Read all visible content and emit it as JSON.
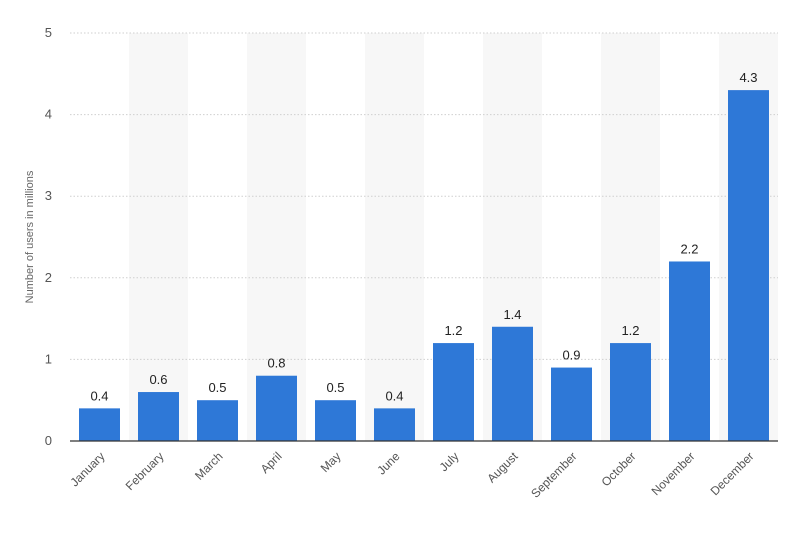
{
  "chart_data": {
    "type": "bar",
    "title": "",
    "xlabel": "",
    "ylabel": "Number of users in millions",
    "ylim": [
      0,
      5
    ],
    "yticks": [
      0,
      1,
      2,
      3,
      4,
      5
    ],
    "grid": true,
    "categories": [
      "January",
      "February",
      "March",
      "April",
      "May",
      "June",
      "July",
      "August",
      "September",
      "October",
      "November",
      "December"
    ],
    "values": [
      0.4,
      0.6,
      0.5,
      0.8,
      0.5,
      0.4,
      1.2,
      1.4,
      0.9,
      1.2,
      2.2,
      4.3
    ],
    "data_labels": [
      "0.4",
      "0.6",
      "0.5",
      "0.8",
      "0.5",
      "0.4",
      "1.2",
      "1.4",
      "0.9",
      "1.2",
      "2.2",
      "4.3"
    ],
    "colors": {
      "bar": "#2e78d7",
      "band": "#f7f7f7",
      "grid": "#cfcfcf",
      "axis": "#333333"
    }
  }
}
